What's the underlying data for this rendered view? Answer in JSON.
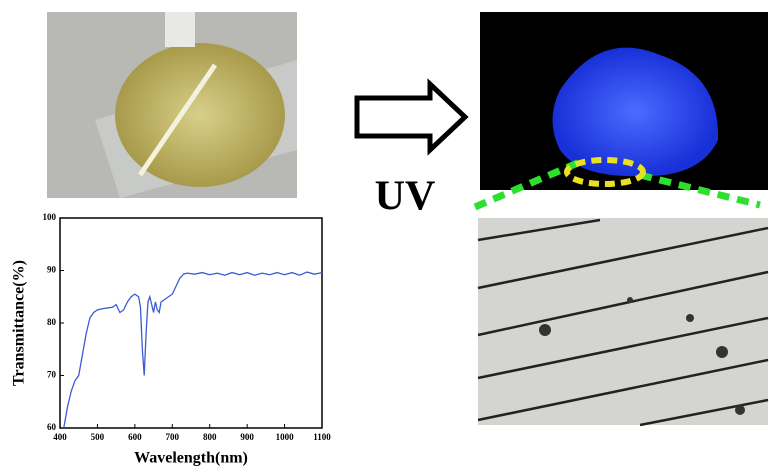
{
  "chart_data": {
    "type": "line",
    "x_label": "Wavelength(nm)",
    "y_label": "Transmittance(%)",
    "x": [
      410,
      420,
      430,
      440,
      450,
      460,
      470,
      480,
      490,
      500,
      520,
      540,
      550,
      560,
      570,
      580,
      590,
      600,
      610,
      615,
      620,
      625,
      630,
      635,
      640,
      645,
      650,
      655,
      660,
      665,
      670,
      680,
      690,
      700,
      710,
      720,
      730,
      740,
      760,
      780,
      800,
      820,
      840,
      860,
      880,
      900,
      920,
      940,
      960,
      980,
      1000,
      1020,
      1040,
      1060,
      1080,
      1100
    ],
    "series": [
      {
        "color": "#3b5bd6",
        "values": [
          60,
          64,
          67,
          69,
          70,
          74,
          78,
          81,
          82,
          82.5,
          82.8,
          83,
          83.5,
          82,
          82.5,
          84,
          85,
          85.5,
          85,
          83,
          75,
          70,
          78,
          84,
          85,
          83.5,
          82,
          84,
          82.5,
          82,
          84,
          84.5,
          85,
          85.5,
          87,
          88.5,
          89.3,
          89.5,
          89.3,
          89.6,
          89.2,
          89.5,
          89.1,
          89.6,
          89.2,
          89.6,
          89.1,
          89.5,
          89.2,
          89.6,
          89.2,
          89.6,
          89.1,
          89.7,
          89.3,
          89.6
        ]
      }
    ],
    "xlim": [
      400,
      1100
    ],
    "xticks": [
      400,
      500,
      600,
      700,
      800,
      900,
      1000,
      1100
    ],
    "ylim": [
      60,
      100
    ],
    "yticks": [
      60,
      70,
      80,
      90,
      100
    ]
  },
  "uv_label": "UV"
}
